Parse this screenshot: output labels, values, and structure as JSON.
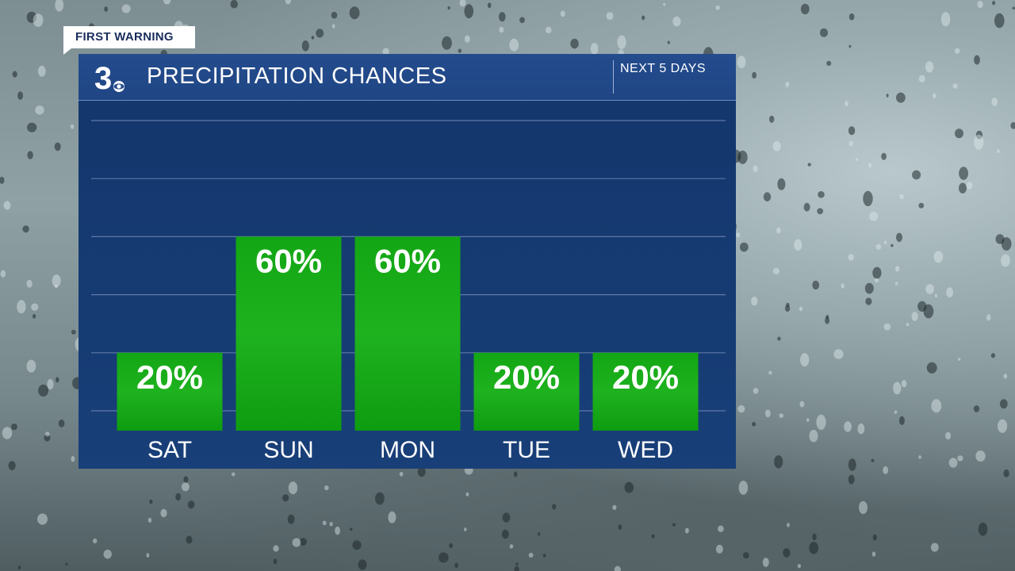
{
  "banner": {
    "label": "FIRST WARNING"
  },
  "header": {
    "logo": "3",
    "title": "PRECIPITATION CHANCES",
    "range": "NEXT 5 DAYS"
  },
  "colors": {
    "panel": "#163b73",
    "header": "#224a8a",
    "bar": "#0fa012",
    "bar_top": "#1eb31e",
    "gridline": "#5f79a8",
    "text": "#ffffff"
  },
  "chart_data": {
    "type": "bar",
    "title": "PRECIPITATION CHANCES",
    "categories": [
      "SAT",
      "SUN",
      "MON",
      "TUE",
      "WED"
    ],
    "values": [
      20,
      60,
      60,
      20,
      20
    ],
    "value_labels": [
      "20%",
      "60%",
      "60%",
      "20%",
      "20%"
    ],
    "ylim": [
      0,
      100
    ],
    "gridlines": [
      0,
      20,
      40,
      60,
      80,
      100
    ],
    "grid": true,
    "legend": "none"
  }
}
